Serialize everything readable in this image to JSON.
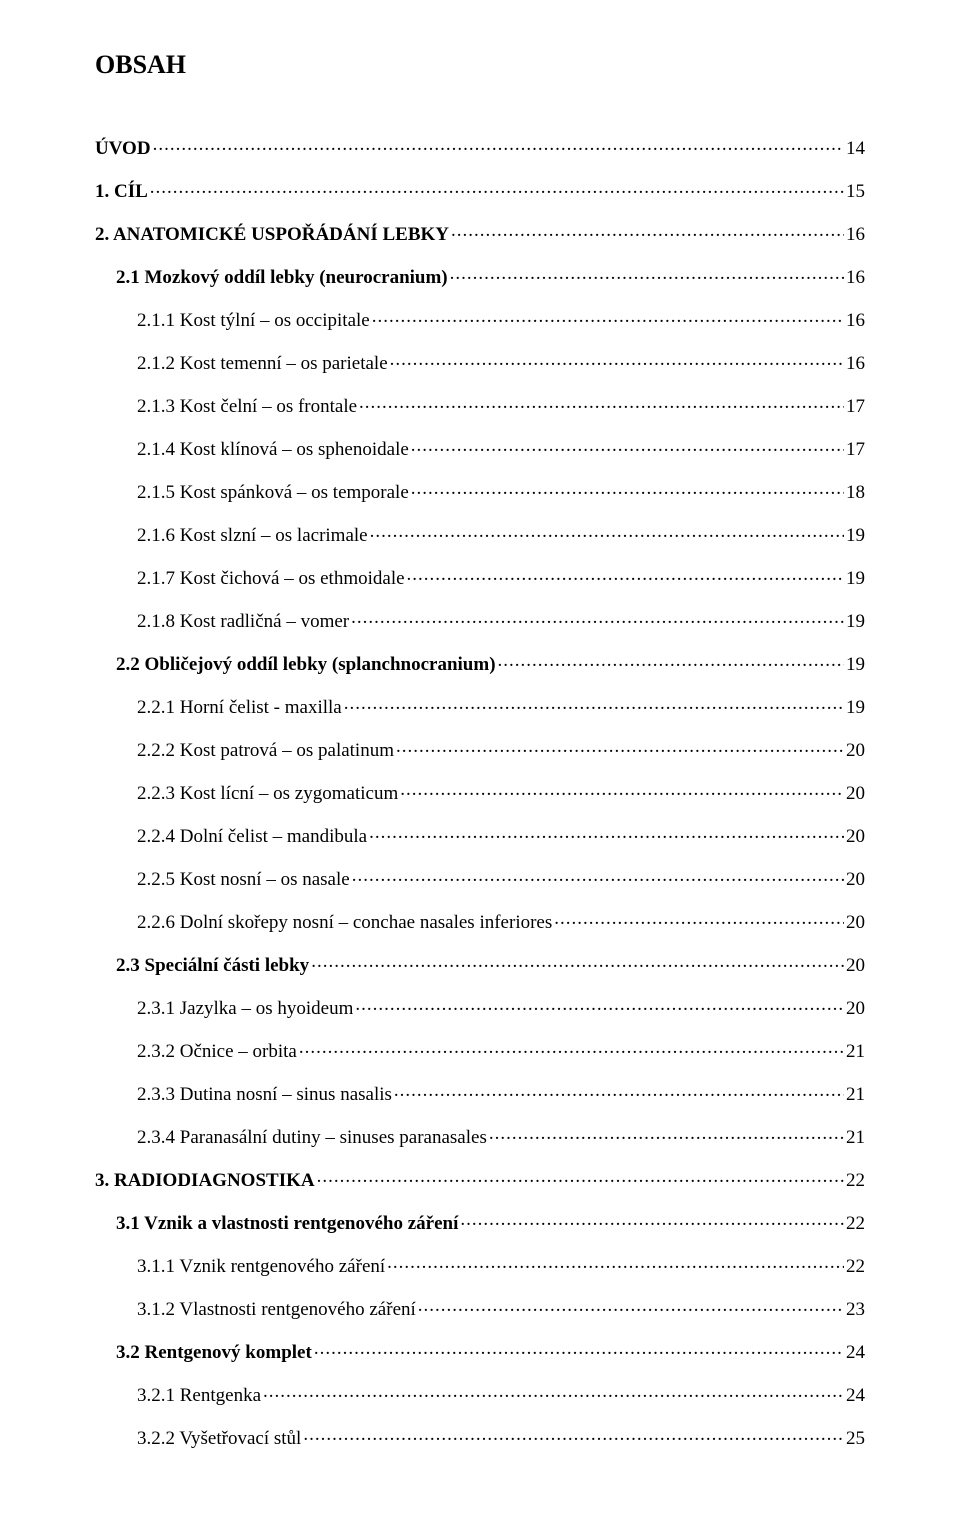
{
  "title": "OBSAH",
  "toc": [
    {
      "label": "ÚVOD",
      "page": "14",
      "bold": true,
      "indent": 0
    },
    {
      "label": "1. CÍL",
      "page": "15",
      "bold": true,
      "indent": 0
    },
    {
      "label": "2. ANATOMICKÉ USPOŘÁDÁNÍ LEBKY",
      "page": "16",
      "bold": true,
      "indent": 0
    },
    {
      "label": "2.1 Mozkový oddíl lebky (neurocranium)",
      "page": "16",
      "bold": true,
      "indent": 1
    },
    {
      "label": "2.1.1 Kost týlní – os occipitale",
      "page": "16",
      "bold": false,
      "indent": 2
    },
    {
      "label": "2.1.2 Kost temenní – os parietale",
      "page": "16",
      "bold": false,
      "indent": 2
    },
    {
      "label": "2.1.3 Kost čelní – os frontale",
      "page": "17",
      "bold": false,
      "indent": 2
    },
    {
      "label": "2.1.4 Kost klínová – os sphenoidale",
      "page": "17",
      "bold": false,
      "indent": 2
    },
    {
      "label": "2.1.5 Kost spánková – os temporale",
      "page": "18",
      "bold": false,
      "indent": 2
    },
    {
      "label": "2.1.6 Kost slzní – os lacrimale",
      "page": "19",
      "bold": false,
      "indent": 2
    },
    {
      "label": "2.1.7 Kost čichová – os ethmoidale",
      "page": "19",
      "bold": false,
      "indent": 2
    },
    {
      "label": "2.1.8 Kost radličná – vomer",
      "page": "19",
      "bold": false,
      "indent": 2
    },
    {
      "label": "2.2 Obličejový oddíl lebky (splanchnocranium)",
      "page": "19",
      "bold": true,
      "indent": 1
    },
    {
      "label": "2.2.1 Horní čelist  - maxilla",
      "page": "19",
      "bold": false,
      "indent": 2
    },
    {
      "label": "2.2.2 Kost patrová – os palatinum",
      "page": "20",
      "bold": false,
      "indent": 2
    },
    {
      "label": "2.2.3 Kost lícní – os zygomaticum",
      "page": "20",
      "bold": false,
      "indent": 2
    },
    {
      "label": "2.2.4 Dolní čelist – mandibula",
      "page": "20",
      "bold": false,
      "indent": 2
    },
    {
      "label": "2.2.5 Kost nosní – os nasale",
      "page": "20",
      "bold": false,
      "indent": 2
    },
    {
      "label": "2.2.6 Dolní skořepy nosní – conchae nasales inferiores",
      "page": "20",
      "bold": false,
      "indent": 2
    },
    {
      "label": "2.3 Speciální části lebky",
      "page": "20",
      "bold": true,
      "indent": 1
    },
    {
      "label": "2.3.1 Jazylka – os hyoideum",
      "page": "20",
      "bold": false,
      "indent": 2
    },
    {
      "label": "2.3.2 Očnice – orbita",
      "page": "21",
      "bold": false,
      "indent": 2
    },
    {
      "label": "2.3.3 Dutina nosní – sinus nasalis",
      "page": "21",
      "bold": false,
      "indent": 2
    },
    {
      "label": "2.3.4 Paranasální dutiny – sinuses paranasales",
      "page": "21",
      "bold": false,
      "indent": 2
    },
    {
      "label": "3. RADIODIAGNOSTIKA",
      "page": "22",
      "bold": true,
      "indent": 0
    },
    {
      "label": "3.1 Vznik a vlastnosti rentgenového záření",
      "page": "22",
      "bold": true,
      "indent": 1
    },
    {
      "label": "3.1.1 Vznik rentgenového záření",
      "page": "22",
      "bold": false,
      "indent": 2
    },
    {
      "label": "3.1.2 Vlastnosti rentgenového záření",
      "page": "23",
      "bold": false,
      "indent": 2
    },
    {
      "label": "3.2 Rentgenový komplet",
      "page": "24",
      "bold": true,
      "indent": 1
    },
    {
      "label": "3.2.1 Rentgenka",
      "page": "24",
      "bold": false,
      "indent": 2
    },
    {
      "label": "3.2.2 Vyšetřovací stůl",
      "page": "25",
      "bold": false,
      "indent": 2
    }
  ]
}
